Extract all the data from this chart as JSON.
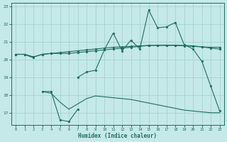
{
  "x": [
    0,
    1,
    2,
    3,
    4,
    5,
    6,
    7,
    8,
    9,
    10,
    11,
    12,
    13,
    14,
    15,
    16,
    17,
    18,
    19,
    20,
    21,
    22,
    23
  ],
  "line_flat": [
    20.3,
    20.3,
    20.15,
    20.3,
    20.35,
    20.4,
    20.45,
    20.5,
    20.55,
    20.6,
    20.65,
    20.7,
    20.72,
    20.75,
    20.78,
    20.8,
    20.8,
    20.8,
    20.8,
    20.78,
    20.75,
    20.72,
    20.7,
    20.7
  ],
  "line_main": [
    20.3,
    20.3,
    20.15,
    20.3,
    20.35,
    20.35,
    20.35,
    20.4,
    20.45,
    20.5,
    20.55,
    20.6,
    20.65,
    20.7,
    20.75,
    20.8,
    20.82,
    20.82,
    20.82,
    20.8,
    20.78,
    20.72,
    20.65,
    20.6
  ],
  "line_humidex": [
    20.3,
    20.3,
    20.1,
    null,
    null,
    null,
    null,
    19.0,
    19.3,
    19.4,
    20.55,
    21.5,
    20.5,
    21.1,
    20.6,
    22.8,
    21.8,
    21.85,
    22.1,
    20.85,
    20.6,
    19.9,
    18.5,
    17.1
  ],
  "line_bottom_markers": [
    null,
    null,
    null,
    18.2,
    18.2,
    16.6,
    16.5,
    17.2,
    null,
    null,
    null,
    null,
    null,
    null,
    null,
    null,
    null,
    null,
    null,
    null,
    null,
    null,
    null,
    null
  ],
  "line_bottom_full": [
    null,
    null,
    null,
    18.2,
    18.1,
    17.6,
    17.2,
    17.5,
    17.8,
    17.95,
    17.9,
    17.85,
    17.8,
    17.75,
    17.65,
    17.55,
    17.45,
    17.35,
    17.25,
    17.15,
    17.1,
    17.05,
    17.0,
    17.0
  ],
  "color": "#1e6e5e",
  "bg_color": "#c5e8e8",
  "grid_color": "#9fcfcf",
  "xlabel": "Humidex (Indice chaleur)",
  "ylim": [
    16.3,
    23.2
  ],
  "xlim": [
    -0.5,
    23.5
  ],
  "yticks": [
    17,
    18,
    19,
    20,
    21,
    22,
    23
  ],
  "xticks": [
    0,
    1,
    2,
    3,
    4,
    5,
    6,
    7,
    8,
    9,
    10,
    11,
    12,
    13,
    14,
    15,
    16,
    17,
    18,
    19,
    20,
    21,
    22,
    23
  ]
}
